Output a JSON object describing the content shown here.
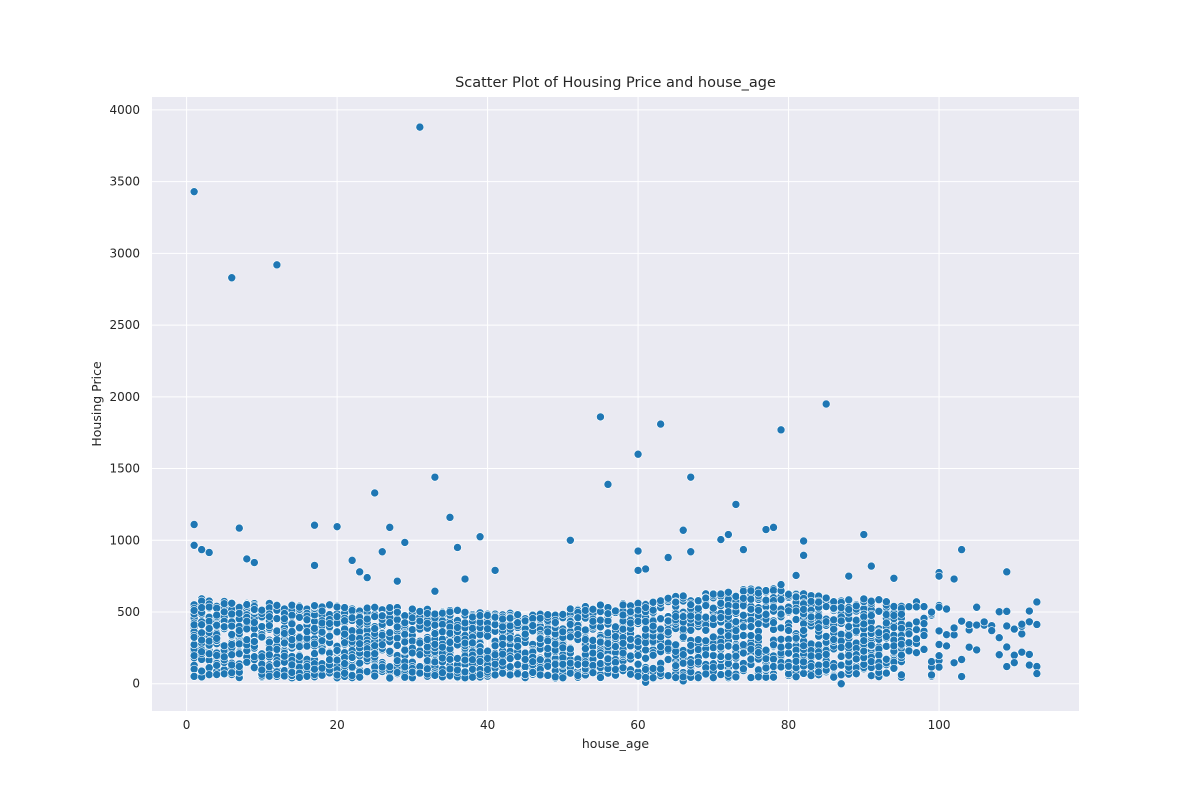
{
  "chart_data": {
    "type": "scatter",
    "title": "Scatter Plot of Housing Price and house_age",
    "xlabel": "house_age",
    "ylabel": "Housing Price",
    "xlim": [
      -4.6,
      118.6
    ],
    "ylim": [
      -190,
      4090
    ],
    "xticks": [
      0,
      20,
      40,
      60,
      80,
      100
    ],
    "yticks": [
      0,
      500,
      1000,
      1500,
      2000,
      2500,
      3000,
      3500,
      4000
    ],
    "grid": true,
    "legend": "none",
    "colors": {
      "plot_background": "#eaeaf2",
      "point": "#1f77b4",
      "grid": "#ffffff"
    },
    "series": [
      {
        "x": [
          1,
          6,
          12,
          31,
          55,
          56,
          60,
          63,
          67,
          79,
          85,
          1,
          7,
          17,
          20,
          27,
          8,
          9,
          2,
          1,
          3,
          29,
          33,
          35,
          36,
          39,
          51,
          25,
          26,
          22,
          17,
          41,
          33,
          28,
          37,
          24,
          23,
          61,
          66,
          71,
          72,
          73,
          74,
          78,
          82,
          90,
          103,
          109,
          60,
          64,
          67,
          77,
          82,
          91,
          100,
          100,
          102,
          94,
          88,
          81,
          60,
          61,
          66,
          87,
          109,
          112,
          111,
          110,
          113
        ],
        "y": [
          3430,
          2830,
          2920,
          3880,
          1860,
          1390,
          1600,
          1810,
          1440,
          1770,
          1950,
          1110,
          1085,
          1105,
          1095,
          1090,
          870,
          845,
          935,
          965,
          915,
          985,
          1440,
          1160,
          950,
          1025,
          1000,
          1330,
          920,
          860,
          825,
          790,
          645,
          715,
          730,
          740,
          780,
          800,
          1070,
          1005,
          1040,
          1250,
          935,
          1090,
          995,
          1040,
          935,
          780,
          925,
          880,
          920,
          1075,
          895,
          820,
          775,
          750,
          730,
          735,
          750,
          755,
          790,
          10,
          20,
          0,
          120,
          130,
          220,
          380,
          570
        ]
      }
    ]
  }
}
